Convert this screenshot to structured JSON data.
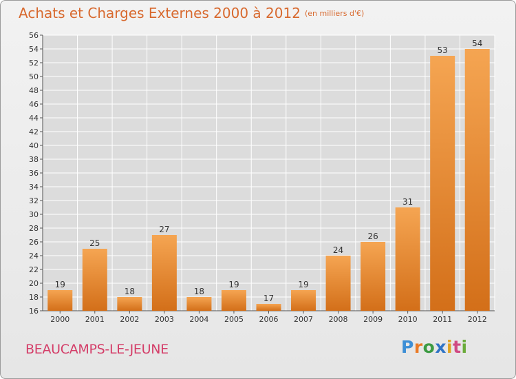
{
  "header": {
    "title": "Achats et Charges Externes 2000 à 2012",
    "subtitle": "(en milliers d'€)"
  },
  "footer": {
    "city": "BEAUCAMPS-LE-JEUNE",
    "logo": {
      "p": "P",
      "r": "r",
      "o": "o",
      "x": "x",
      "i1": "i",
      "t": "t",
      "i2": "i"
    }
  },
  "colors": {
    "bar_light": "#f5a552",
    "bar_dark": "#d36f19",
    "title": "#d8692e",
    "city": "#d43d68",
    "grid": "#ffffff"
  },
  "chart_data": {
    "type": "bar",
    "categories": [
      "2000",
      "2001",
      "2002",
      "2003",
      "2004",
      "2005",
      "2006",
      "2007",
      "2008",
      "2009",
      "2010",
      "2011",
      "2012"
    ],
    "values": [
      19,
      25,
      18,
      27,
      18,
      19,
      17,
      19,
      24,
      26,
      31,
      53,
      54
    ],
    "ylim": [
      16,
      56
    ],
    "ytick_step": 2,
    "grid": true,
    "data_labels": true
  }
}
